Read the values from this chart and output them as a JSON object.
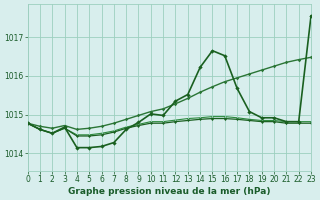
{
  "title": "Graphe pression niveau de la mer (hPa)",
  "bg_color": "#d8eeed",
  "grid_color": "#9dcfbf",
  "xlim": [
    0,
    23
  ],
  "ylim": [
    1013.55,
    1017.85
  ],
  "yticks": [
    1014,
    1015,
    1016,
    1017
  ],
  "xticks": [
    0,
    1,
    2,
    3,
    4,
    5,
    6,
    7,
    8,
    9,
    10,
    11,
    12,
    13,
    14,
    15,
    16,
    17,
    18,
    19,
    20,
    21,
    22,
    23
  ],
  "series": [
    {
      "x": [
        0,
        1,
        2,
        3,
        4,
        5,
        6,
        7,
        8,
        9,
        10,
        11,
        12,
        13,
        14,
        15,
        16,
        17,
        18,
        19,
        20,
        21,
        22,
        23
      ],
      "y": [
        1014.78,
        1014.62,
        1014.52,
        1014.68,
        1014.15,
        1014.15,
        1014.18,
        1014.28,
        1014.62,
        1014.8,
        1015.02,
        1014.98,
        1015.35,
        1015.52,
        1016.22,
        1016.65,
        1016.52,
        1015.68,
        1015.08,
        1014.92,
        1014.92,
        1014.82,
        1014.82,
        1017.55
      ],
      "color": "#1a6020",
      "lw": 1.2,
      "ms": 2.2,
      "zorder": 4
    },
    {
      "x": [
        0,
        1,
        2,
        3,
        4,
        5,
        6,
        7,
        8,
        9,
        10,
        11,
        12,
        13,
        14,
        15,
        16,
        17,
        18,
        19,
        20,
        21,
        22,
        23
      ],
      "y": [
        1014.78,
        1014.7,
        1014.65,
        1014.72,
        1014.62,
        1014.65,
        1014.7,
        1014.78,
        1014.88,
        1014.98,
        1015.08,
        1015.15,
        1015.28,
        1015.42,
        1015.58,
        1015.72,
        1015.85,
        1015.95,
        1016.05,
        1016.15,
        1016.25,
        1016.35,
        1016.42,
        1016.48
      ],
      "color": "#2a7535",
      "lw": 1.0,
      "ms": 1.8,
      "zorder": 3
    },
    {
      "x": [
        0,
        1,
        2,
        3,
        4,
        5,
        6,
        7,
        8,
        9,
        10,
        11,
        12,
        13,
        14,
        15,
        16,
        17,
        18,
        19,
        20,
        21,
        22,
        23
      ],
      "y": [
        1014.78,
        1014.62,
        1014.52,
        1014.65,
        1014.45,
        1014.45,
        1014.48,
        1014.55,
        1014.65,
        1014.72,
        1014.78,
        1014.78,
        1014.82,
        1014.85,
        1014.88,
        1014.9,
        1014.9,
        1014.88,
        1014.85,
        1014.82,
        1014.82,
        1014.78,
        1014.78,
        1014.78
      ],
      "color": "#1a6020",
      "lw": 0.9,
      "ms": 1.5,
      "zorder": 2
    },
    {
      "x": [
        0,
        1,
        2,
        3,
        4,
        5,
        6,
        7,
        8,
        9,
        10,
        11,
        12,
        13,
        14,
        15,
        16,
        17,
        18,
        19,
        20,
        21,
        22,
        23
      ],
      "y": [
        1014.78,
        1014.62,
        1014.52,
        1014.65,
        1014.48,
        1014.48,
        1014.52,
        1014.58,
        1014.68,
        1014.75,
        1014.82,
        1014.82,
        1014.86,
        1014.9,
        1014.92,
        1014.95,
        1014.95,
        1014.92,
        1014.88,
        1014.85,
        1014.85,
        1014.82,
        1014.82,
        1014.82
      ],
      "color": "#2d8a3e",
      "lw": 0.8,
      "ms": 1.3,
      "zorder": 1
    }
  ],
  "font_color": "#1a5c2a",
  "tick_fontsize": 5.5,
  "label_fontsize": 6.5
}
